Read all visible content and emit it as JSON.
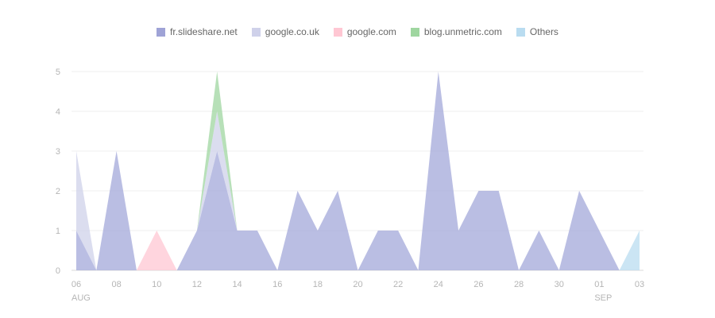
{
  "chart_data": {
    "type": "area",
    "title": "",
    "xlabel": "",
    "ylabel": "",
    "ylim": [
      0,
      5
    ],
    "yticks": [
      "0",
      "1",
      "2",
      "3",
      "4",
      "5"
    ],
    "grid": true,
    "legend": "top-center",
    "x": [
      "2024-08-06",
      "2024-08-07",
      "2024-08-08",
      "2024-08-09",
      "2024-08-10",
      "2024-08-11",
      "2024-08-12",
      "2024-08-13",
      "2024-08-14",
      "2024-08-15",
      "2024-08-16",
      "2024-08-17",
      "2024-08-18",
      "2024-08-19",
      "2024-08-20",
      "2024-08-21",
      "2024-08-22",
      "2024-08-23",
      "2024-08-24",
      "2024-08-25",
      "2024-08-26",
      "2024-08-27",
      "2024-08-28",
      "2024-08-29",
      "2024-08-30",
      "2024-08-31",
      "2024-09-01",
      "2024-09-02",
      "2024-09-03"
    ],
    "xticks": [
      {
        "label": "06",
        "sub": "AUG",
        "index": 0
      },
      {
        "label": "08",
        "sub": "",
        "index": 2
      },
      {
        "label": "10",
        "sub": "",
        "index": 4
      },
      {
        "label": "12",
        "sub": "",
        "index": 6
      },
      {
        "label": "14",
        "sub": "",
        "index": 8
      },
      {
        "label": "16",
        "sub": "",
        "index": 10
      },
      {
        "label": "18",
        "sub": "",
        "index": 12
      },
      {
        "label": "20",
        "sub": "",
        "index": 14
      },
      {
        "label": "22",
        "sub": "",
        "index": 16
      },
      {
        "label": "24",
        "sub": "",
        "index": 18
      },
      {
        "label": "26",
        "sub": "",
        "index": 20
      },
      {
        "label": "28",
        "sub": "",
        "index": 22
      },
      {
        "label": "30",
        "sub": "",
        "index": 24
      },
      {
        "label": "01",
        "sub": "SEP",
        "index": 26
      },
      {
        "label": "03",
        "sub": "",
        "index": 28
      }
    ],
    "series": [
      {
        "name": "fr.slideshare.net",
        "color": "#a3a8d9",
        "values": [
          1,
          0,
          3,
          0,
          0,
          0,
          1,
          3,
          1,
          1,
          0,
          2,
          1,
          2,
          0,
          1,
          1,
          0,
          5,
          1,
          2,
          2,
          0,
          1,
          0,
          2,
          1,
          0,
          0
        ]
      },
      {
        "name": "google.co.uk",
        "color": "#cfd1ea",
        "values": [
          2,
          0,
          0,
          0,
          0,
          0,
          0,
          1,
          0,
          0,
          0,
          0,
          0,
          0,
          0,
          0,
          0,
          0,
          0,
          0,
          0,
          0,
          0,
          0,
          0,
          0,
          0,
          0,
          0
        ]
      },
      {
        "name": "google.com",
        "color": "#ffc7d3",
        "values": [
          0,
          0,
          0,
          0,
          1,
          0,
          0,
          0,
          0,
          0,
          0,
          0,
          0,
          0,
          0,
          0,
          0,
          0,
          0,
          0,
          0,
          0,
          0,
          0,
          0,
          0,
          0,
          0,
          0
        ]
      },
      {
        "name": "blog.unmetric.com",
        "color": "#9fd6a0",
        "values": [
          0,
          0,
          0,
          0,
          0,
          0,
          0,
          1,
          0,
          0,
          0,
          0,
          0,
          0,
          0,
          0,
          0,
          0,
          0,
          0,
          0,
          0,
          0,
          0,
          0,
          0,
          0,
          0,
          0
        ]
      },
      {
        "name": "Others",
        "color": "#b9dcf0",
        "values": [
          0,
          0,
          0,
          0,
          0,
          0,
          0,
          0,
          0,
          0,
          0,
          0,
          0,
          0,
          0,
          0,
          0,
          0,
          0,
          0,
          0,
          0,
          0,
          0,
          0,
          0,
          0,
          0,
          1
        ]
      }
    ]
  }
}
